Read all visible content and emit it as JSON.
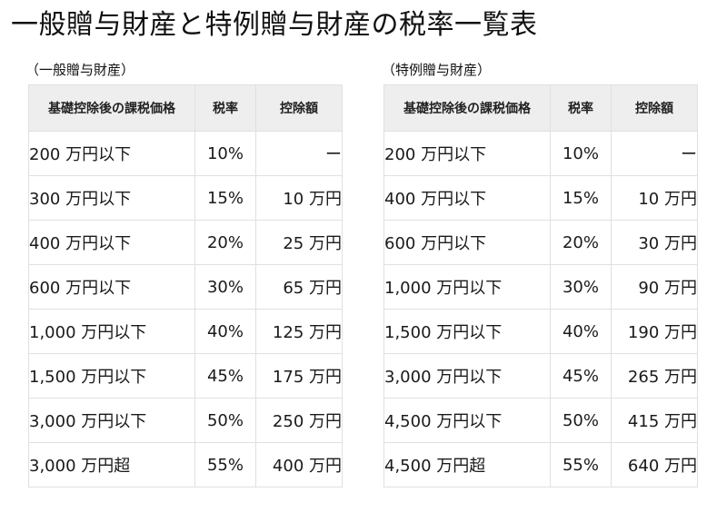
{
  "title": "一般贈与財産と特例贈与財産の税率一覧表",
  "headers": {
    "price": "基礎控除後の課税価格",
    "rate": "税率",
    "deduction": "控除額"
  },
  "general": {
    "label": "（一般贈与財産）",
    "rows": [
      {
        "price": "200 万円以下",
        "rate": "10%",
        "deduction": "ー"
      },
      {
        "price": "300 万円以下",
        "rate": "15%",
        "deduction": "10 万円"
      },
      {
        "price": "400 万円以下",
        "rate": "20%",
        "deduction": "25 万円"
      },
      {
        "price": "600 万円以下",
        "rate": "30%",
        "deduction": "65 万円"
      },
      {
        "price": "1,000 万円以下",
        "rate": "40%",
        "deduction": "125 万円"
      },
      {
        "price": "1,500 万円以下",
        "rate": "45%",
        "deduction": "175 万円"
      },
      {
        "price": "3,000 万円以下",
        "rate": "50%",
        "deduction": "250 万円"
      },
      {
        "price": "3,000 万円超",
        "rate": "55%",
        "deduction": "400 万円"
      }
    ]
  },
  "special": {
    "label": "（特例贈与財産）",
    "rows": [
      {
        "price": "200 万円以下",
        "rate": "10%",
        "deduction": "ー"
      },
      {
        "price": "400 万円以下",
        "rate": "15%",
        "deduction": "10 万円"
      },
      {
        "price": "600 万円以下",
        "rate": "20%",
        "deduction": "30 万円"
      },
      {
        "price": "1,000 万円以下",
        "rate": "30%",
        "deduction": "90 万円"
      },
      {
        "price": "1,500 万円以下",
        "rate": "40%",
        "deduction": "190 万円"
      },
      {
        "price": "3,000 万円以下",
        "rate": "45%",
        "deduction": "265 万円"
      },
      {
        "price": "4,500 万円以下",
        "rate": "50%",
        "deduction": "415 万円"
      },
      {
        "price": "4,500 万円超",
        "rate": "55%",
        "deduction": "640 万円"
      }
    ]
  }
}
